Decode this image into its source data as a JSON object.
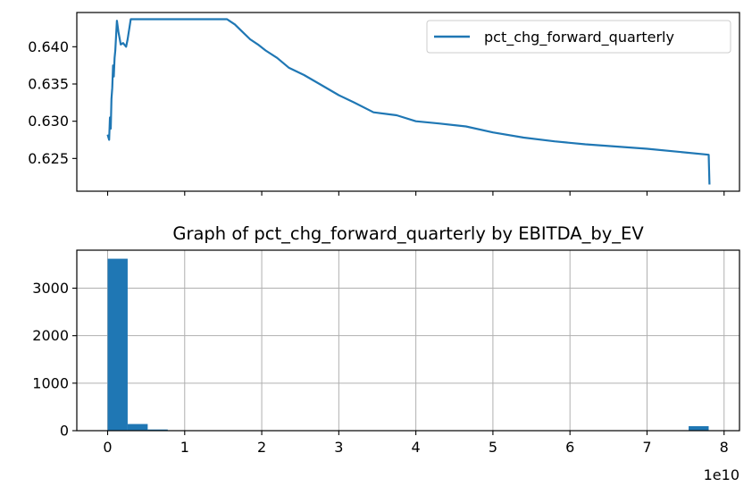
{
  "chart_data": [
    {
      "type": "line",
      "title": "",
      "xlabel": "",
      "ylabel": "",
      "xlim": [
        -0.4,
        8.2
      ],
      "ylim": [
        0.6206,
        0.6446
      ],
      "x_scale_label": "1e10",
      "x_ticks_shown": [
        0,
        1,
        2,
        3,
        4,
        5,
        6,
        7,
        8
      ],
      "x_tick_labels_visible": false,
      "y_ticks": [
        0.625,
        0.63,
        0.635,
        0.64
      ],
      "y_tick_labels": [
        "0.625",
        "0.630",
        "0.635",
        "0.640"
      ],
      "grid": false,
      "legend": "upper right",
      "color": "#1f77b4",
      "series": [
        {
          "name": "pct_chg_forward_quarterly",
          "x": [
            0.0,
            0.02,
            0.03,
            0.04,
            0.05,
            0.06,
            0.07,
            0.08,
            0.09,
            0.1,
            0.12,
            0.14,
            0.17,
            0.2,
            0.24,
            0.26,
            0.3,
            0.35,
            0.4,
            0.6,
            0.8,
            1.0,
            1.2,
            1.55,
            1.65,
            1.75,
            1.85,
            1.95,
            2.05,
            2.2,
            2.35,
            2.55,
            2.75,
            3.0,
            3.2,
            3.45,
            3.75,
            4.0,
            4.3,
            4.65,
            5.0,
            5.4,
            5.8,
            6.2,
            6.6,
            7.0,
            7.4,
            7.8,
            7.81
          ],
          "y": [
            0.6282,
            0.6275,
            0.6305,
            0.629,
            0.633,
            0.6345,
            0.6375,
            0.636,
            0.6385,
            0.6395,
            0.6435,
            0.642,
            0.6403,
            0.6405,
            0.64,
            0.641,
            0.6437,
            0.6437,
            0.6437,
            0.6437,
            0.6437,
            0.6437,
            0.6437,
            0.6437,
            0.643,
            0.642,
            0.641,
            0.6403,
            0.6395,
            0.6385,
            0.6372,
            0.6362,
            0.635,
            0.6335,
            0.6325,
            0.6312,
            0.6308,
            0.63,
            0.6297,
            0.6293,
            0.6285,
            0.6278,
            0.6273,
            0.6269,
            0.6266,
            0.6263,
            0.6259,
            0.6255,
            0.6215
          ]
        }
      ]
    },
    {
      "type": "bar",
      "title": "Graph of pct_chg_forward_quarterly by EBITDA_by_EV",
      "xlabel": "",
      "ylabel": "",
      "xlim": [
        -0.4,
        8.2
      ],
      "ylim": [
        0,
        3800
      ],
      "x_scale_label": "1e10",
      "x_ticks": [
        0,
        1,
        2,
        3,
        4,
        5,
        6,
        7,
        8
      ],
      "x_tick_labels": [
        "0",
        "1",
        "2",
        "3",
        "4",
        "5",
        "6",
        "7",
        "8"
      ],
      "y_ticks": [
        0,
        1000,
        2000,
        3000
      ],
      "y_tick_labels": [
        "0",
        "1000",
        "2000",
        "3000"
      ],
      "grid": true,
      "color": "#1f77b4",
      "bins": [
        {
          "x0": 0.0,
          "x1": 0.26,
          "value": 3620
        },
        {
          "x0": 0.26,
          "x1": 0.52,
          "value": 140
        },
        {
          "x0": 0.52,
          "x1": 0.78,
          "value": 25
        },
        {
          "x0": 7.54,
          "x1": 7.8,
          "value": 95
        }
      ]
    }
  ]
}
